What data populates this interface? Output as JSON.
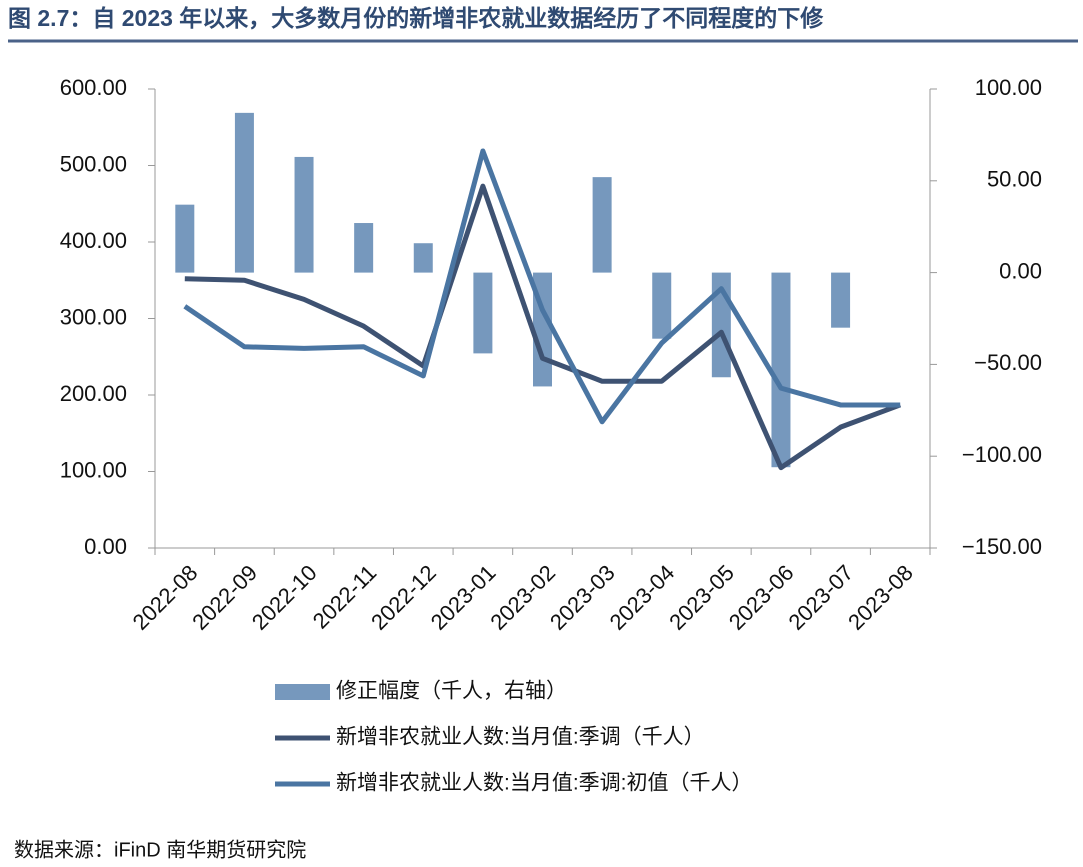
{
  "chart_data": {
    "type": "bar-line",
    "title": "图 2.7：自 2023 年以来，大多数月份的新增非农就业数据经历了不同程度的下修",
    "source": "数据来源：iFinD 南华期货研究院",
    "categories": [
      "2022-08",
      "2022-09",
      "2022-10",
      "2022-11",
      "2022-12",
      "2023-01",
      "2023-02",
      "2023-03",
      "2023-04",
      "2023-05",
      "2023-06",
      "2023-07",
      "2023-08"
    ],
    "series": [
      {
        "name": "修正幅度（千人，右轴）",
        "type": "bar",
        "axis": "y2",
        "color": "#7698bd",
        "values": [
          37,
          87,
          63,
          27,
          16,
          -44,
          -62,
          52,
          -36,
          -57,
          -106,
          -30,
          null
        ]
      },
      {
        "name": "新增非农就业人数:当月值:季调（千人）",
        "type": "line",
        "axis": "y",
        "color": "#3e5272",
        "values": [
          352,
          350,
          325,
          290,
          238,
          473,
          248,
          218,
          218,
          282,
          105,
          158,
          187
        ]
      },
      {
        "name": "新增非农就业人数:当月值:季调:初值（千人）",
        "type": "line",
        "axis": "y",
        "color": "#4a75a2",
        "values": [
          316,
          263,
          261,
          263,
          225,
          519,
          311,
          165,
          268,
          339,
          209,
          187,
          187
        ]
      }
    ],
    "ylim": [
      0,
      600
    ],
    "yticks": [
      {
        "value": 0,
        "label": "0.00"
      },
      {
        "value": 100,
        "label": "100.00"
      },
      {
        "value": 200,
        "label": "200.00"
      },
      {
        "value": 300,
        "label": "300.00"
      },
      {
        "value": 400,
        "label": "400.00"
      },
      {
        "value": 500,
        "label": "500.00"
      },
      {
        "value": 600,
        "label": "600.00"
      }
    ],
    "y2lim": [
      -150,
      100
    ],
    "y2ticks": [
      {
        "value": -150,
        "label": "−150.00"
      },
      {
        "value": -100,
        "label": "−100.00"
      },
      {
        "value": -50,
        "label": "−50.00"
      },
      {
        "value": 0,
        "label": "0.00"
      },
      {
        "value": 50,
        "label": "50.00"
      },
      {
        "value": 100,
        "label": "100.00"
      }
    ]
  }
}
